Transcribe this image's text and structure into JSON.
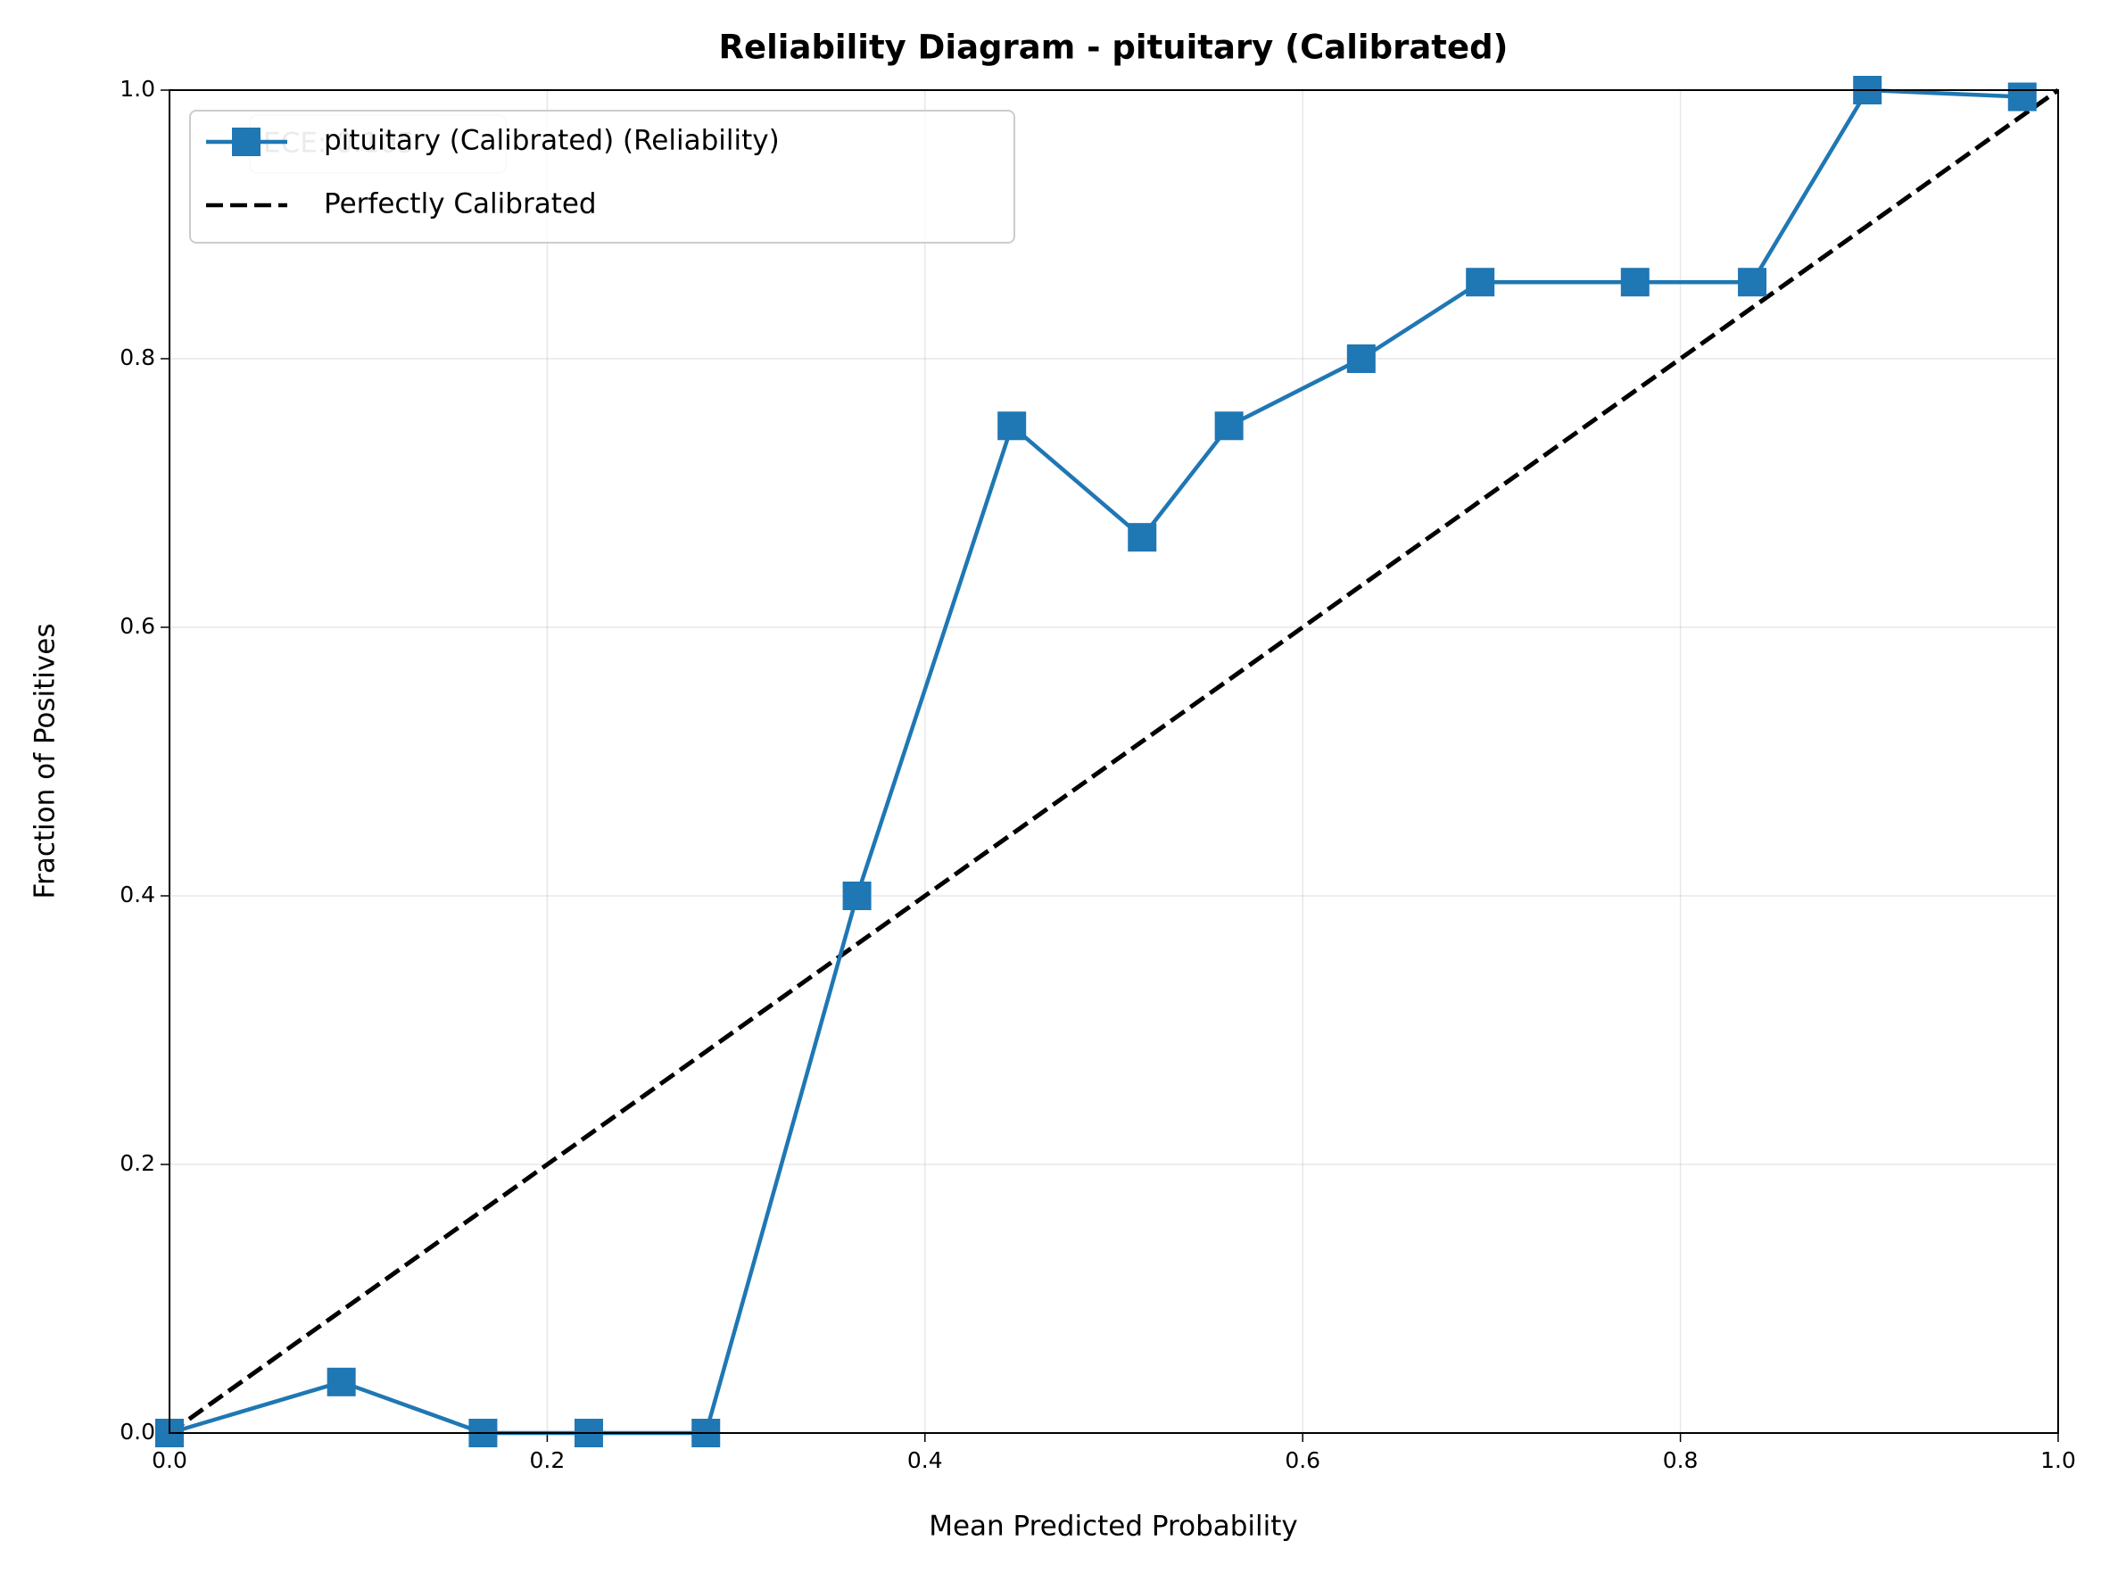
{
  "chart_data": {
    "type": "line",
    "title": "Reliability Diagram - pituitary (Calibrated)",
    "xlabel": "Mean Predicted Probability",
    "ylabel": "Fraction of Positives",
    "annotation": "ECE: 0.105",
    "xlim": [
      0,
      1
    ],
    "ylim": [
      0,
      1
    ],
    "xticks": [
      {
        "value": 0,
        "label": "0.0"
      },
      0.2,
      0.4,
      0.6,
      0.8,
      {
        "value": 1,
        "label": "1.0"
      }
    ],
    "yticks": [
      {
        "value": 0,
        "label": "0.0"
      },
      0.2,
      0.4,
      0.6,
      0.8,
      {
        "value": 1,
        "label": "1.0"
      }
    ],
    "grid": true,
    "legend": "upper left",
    "series": [
      {
        "name": "pituitary (Calibrated) (Reliability)",
        "color": "#1f77b4",
        "marker": "square",
        "x": [
          0.0,
          0.091,
          0.166,
          0.222,
          0.284,
          0.364,
          0.446,
          0.515,
          0.561,
          0.631,
          0.694,
          0.776,
          0.838,
          0.899,
          0.981
        ],
        "values": [
          0.0,
          0.038,
          0.0,
          0.0,
          0.0,
          0.4,
          0.75,
          0.667,
          0.75,
          0.8,
          0.857,
          0.857,
          0.857,
          1.0,
          0.995
        ]
      },
      {
        "name": "Perfectly Calibrated",
        "color": "#000000",
        "dashed": true,
        "x": [
          0,
          1
        ],
        "values": [
          0,
          1
        ]
      }
    ]
  }
}
